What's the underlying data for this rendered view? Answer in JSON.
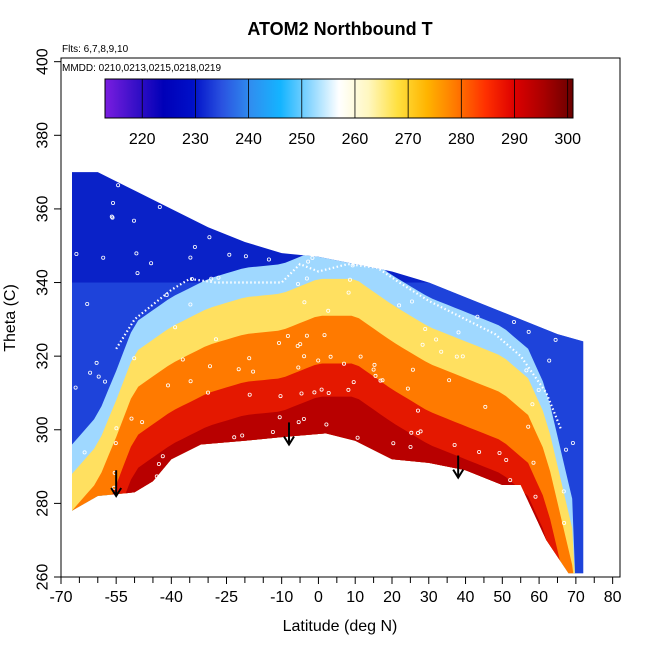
{
  "chart_data": {
    "type": "heatmap",
    "title": "ATOM2 Northbound T",
    "annotations": [
      "Flts: 6,7,8,9,10",
      "MMDD: 0210,0213,0215,0218,0219"
    ],
    "xlabel": "Latitude (deg N)",
    "ylabel": "Theta (C)",
    "xlim": [
      -70,
      82
    ],
    "ylim": [
      260,
      401
    ],
    "x_ticks_major": [
      -70,
      -55,
      -40,
      -25,
      -10,
      0,
      10,
      20,
      30,
      40,
      50,
      60,
      70,
      80
    ],
    "x_ticks_minor": [
      -65,
      -60,
      -50,
      -45,
      -35,
      -30,
      -20,
      -15,
      -5,
      5,
      15,
      25,
      35,
      45,
      55,
      65,
      75
    ],
    "y_ticks": [
      260,
      280,
      300,
      320,
      340,
      360,
      380,
      400
    ],
    "colorbar": {
      "min": 213,
      "max": 301,
      "ticks": [
        220,
        230,
        240,
        250,
        260,
        270,
        280,
        290,
        300
      ],
      "colors": [
        "#7a1de0",
        "#3a10c8",
        "#0000b8",
        "#0010c8",
        "#2a52e0",
        "#2f8ff0",
        "#14b4ff",
        "#8ad6ff",
        "#ffffff",
        "#fff7c0",
        "#ffe040",
        "#ffb400",
        "#ff7800",
        "#ff3000",
        "#dd0000",
        "#a80000",
        "#6a0000"
      ]
    },
    "domain_top": [
      [
        -67,
        370
      ],
      [
        -60,
        370
      ],
      [
        -50,
        365
      ],
      [
        -40,
        360
      ],
      [
        -30,
        355
      ],
      [
        -20,
        351
      ],
      [
        -10,
        348
      ],
      [
        0,
        347
      ],
      [
        10,
        345
      ],
      [
        20,
        343
      ],
      [
        30,
        340
      ],
      [
        40,
        336
      ],
      [
        50,
        332
      ],
      [
        60,
        328
      ],
      [
        65,
        326
      ],
      [
        72,
        324
      ]
    ],
    "domain_bottom": [
      [
        -67,
        278
      ],
      [
        -60,
        282
      ],
      [
        -50,
        283
      ],
      [
        -45,
        286
      ],
      [
        -40,
        292
      ],
      [
        -32,
        296
      ],
      [
        -20,
        297
      ],
      [
        -10,
        298
      ],
      [
        2,
        299
      ],
      [
        10,
        297
      ],
      [
        20,
        292
      ],
      [
        30,
        291
      ],
      [
        40,
        289
      ],
      [
        50,
        285
      ],
      [
        55,
        285
      ],
      [
        62,
        270
      ],
      [
        68,
        261
      ],
      [
        72,
        261
      ]
    ],
    "warm_core_top": [
      [
        -67,
        282
      ],
      [
        -60,
        290
      ],
      [
        -55,
        302
      ],
      [
        -50,
        315
      ],
      [
        -40,
        322
      ],
      [
        -30,
        327
      ],
      [
        -20,
        330
      ],
      [
        -10,
        331
      ],
      [
        0,
        335
      ],
      [
        10,
        335
      ],
      [
        20,
        328
      ],
      [
        30,
        322
      ],
      [
        40,
        318
      ],
      [
        50,
        314
      ],
      [
        57,
        308
      ],
      [
        62,
        297
      ],
      [
        66,
        280
      ],
      [
        70,
        263
      ]
    ],
    "tropopause_line": [
      [
        -55,
        322
      ],
      [
        -50,
        330
      ],
      [
        -45,
        334
      ],
      [
        -40,
        338
      ],
      [
        -35,
        341
      ],
      [
        -28,
        340
      ],
      [
        -20,
        340
      ],
      [
        -10,
        340
      ],
      [
        -5,
        345
      ],
      [
        0,
        343
      ],
      [
        8,
        345
      ],
      [
        16,
        344
      ],
      [
        22,
        340
      ],
      [
        30,
        335
      ],
      [
        40,
        330
      ],
      [
        48,
        326
      ],
      [
        55,
        320
      ],
      [
        62,
        310
      ],
      [
        66,
        300
      ]
    ],
    "arrows": [
      [
        -55,
        289,
        282
      ],
      [
        -8,
        302,
        296
      ],
      [
        38,
        293,
        287
      ]
    ]
  }
}
